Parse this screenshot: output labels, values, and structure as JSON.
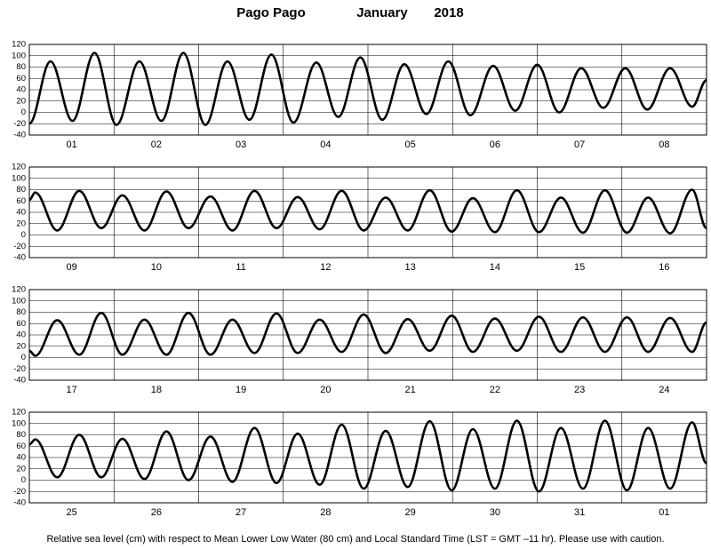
{
  "title": "Pago Pago",
  "month": "January",
  "year": "2018",
  "footnote": "Relative sea level (cm) with respect to Mean Lower Low Water (80 cm) and Local Standard Time (LST = GMT –11 hr). Please use with caution.",
  "chart_data": [
    {
      "type": "line",
      "xlim": [
        0,
        8
      ],
      "ylim": [
        -40,
        120
      ],
      "yticks": [
        -40,
        -20,
        0,
        20,
        40,
        60,
        80,
        100,
        120
      ],
      "grid": true,
      "xgrid": [
        1,
        2,
        3,
        4,
        5,
        6,
        7
      ],
      "xticks": [
        {
          "value": 0.5,
          "label": "01"
        },
        {
          "value": 1.5,
          "label": "02"
        },
        {
          "value": 2.5,
          "label": "03"
        },
        {
          "value": 3.5,
          "label": "04"
        },
        {
          "value": 4.5,
          "label": "05"
        },
        {
          "value": 5.5,
          "label": "06"
        },
        {
          "value": 6.5,
          "label": "07"
        },
        {
          "value": 7.5,
          "label": "08"
        }
      ],
      "x": [
        0,
        0.25,
        0.51,
        0.77,
        1.03,
        1.3,
        1.56,
        1.82,
        2.08,
        2.34,
        2.6,
        2.86,
        3.12,
        3.39,
        3.65,
        3.91,
        4.17,
        4.43,
        4.69,
        4.95,
        5.21,
        5.48,
        5.74,
        6.0,
        6.26,
        6.52,
        6.78,
        7.04,
        7.3,
        7.57,
        7.83,
        8
      ],
      "series": [
        {
          "color": "#000000",
          "values": [
            -20,
            90,
            -15,
            105,
            -22,
            90,
            -15,
            105,
            -22,
            90,
            -13,
            102,
            -18,
            88,
            -8,
            97,
            -13,
            85,
            -3,
            90,
            -5,
            82,
            3,
            84,
            0,
            78,
            8,
            78,
            5,
            78,
            10,
            57
          ]
        }
      ]
    },
    {
      "type": "line",
      "xlim": [
        0,
        8
      ],
      "ylim": [
        -40,
        120
      ],
      "yticks": [
        -40,
        -20,
        0,
        20,
        40,
        60,
        80,
        100,
        120
      ],
      "grid": true,
      "xgrid": [
        1,
        2,
        3,
        4,
        5,
        6,
        7
      ],
      "xticks": [
        {
          "value": 0.5,
          "label": "09"
        },
        {
          "value": 1.5,
          "label": "10"
        },
        {
          "value": 2.5,
          "label": "11"
        },
        {
          "value": 3.5,
          "label": "12"
        },
        {
          "value": 4.5,
          "label": "13"
        },
        {
          "value": 5.5,
          "label": "14"
        },
        {
          "value": 6.5,
          "label": "15"
        },
        {
          "value": 7.5,
          "label": "16"
        }
      ],
      "x": [
        0,
        0.07,
        0.33,
        0.59,
        0.85,
        1.1,
        1.36,
        1.62,
        1.88,
        2.14,
        2.4,
        2.66,
        2.92,
        3.17,
        3.43,
        3.69,
        3.95,
        4.21,
        4.47,
        4.73,
        4.99,
        5.24,
        5.5,
        5.76,
        6.02,
        6.28,
        6.54,
        6.8,
        7.06,
        7.31,
        7.57,
        7.83,
        8
      ],
      "series": [
        {
          "color": "#000000",
          "values": [
            62,
            75,
            8,
            78,
            12,
            70,
            8,
            77,
            12,
            68,
            8,
            78,
            12,
            67,
            10,
            78,
            8,
            66,
            8,
            79,
            6,
            65,
            5,
            79,
            5,
            66,
            4,
            79,
            4,
            66,
            3,
            80,
            12
          ]
        }
      ]
    },
    {
      "type": "line",
      "xlim": [
        0,
        8
      ],
      "ylim": [
        -40,
        120
      ],
      "yticks": [
        -40,
        -20,
        0,
        20,
        40,
        60,
        80,
        100,
        120
      ],
      "grid": true,
      "xgrid": [
        1,
        2,
        3,
        4,
        5,
        6,
        7
      ],
      "xticks": [
        {
          "value": 0.5,
          "label": "17"
        },
        {
          "value": 1.5,
          "label": "18"
        },
        {
          "value": 2.5,
          "label": "19"
        },
        {
          "value": 3.5,
          "label": "20"
        },
        {
          "value": 4.5,
          "label": "21"
        },
        {
          "value": 5.5,
          "label": "22"
        },
        {
          "value": 6.5,
          "label": "23"
        },
        {
          "value": 7.5,
          "label": "24"
        }
      ],
      "x": [
        0,
        0.07,
        0.33,
        0.59,
        0.85,
        1.1,
        1.36,
        1.62,
        1.88,
        2.14,
        2.4,
        2.66,
        2.92,
        3.17,
        3.43,
        3.69,
        3.95,
        4.21,
        4.47,
        4.73,
        4.99,
        5.24,
        5.5,
        5.76,
        6.02,
        6.28,
        6.54,
        6.8,
        7.06,
        7.31,
        7.57,
        7.83,
        8
      ],
      "series": [
        {
          "color": "#000000",
          "values": [
            12,
            3,
            66,
            5,
            79,
            5,
            67,
            5,
            79,
            5,
            67,
            8,
            78,
            8,
            67,
            10,
            76,
            8,
            68,
            12,
            74,
            10,
            69,
            12,
            72,
            10,
            71,
            10,
            71,
            10,
            70,
            10,
            62
          ]
        }
      ]
    },
    {
      "type": "line",
      "xlim": [
        0,
        8
      ],
      "ylim": [
        -40,
        120
      ],
      "yticks": [
        -40,
        -20,
        0,
        20,
        40,
        60,
        80,
        100,
        120
      ],
      "grid": true,
      "xgrid": [
        1,
        2,
        3,
        4,
        5,
        6,
        7
      ],
      "xticks": [
        {
          "value": 0.5,
          "label": "25"
        },
        {
          "value": 1.5,
          "label": "26"
        },
        {
          "value": 2.5,
          "label": "27"
        },
        {
          "value": 3.5,
          "label": "28"
        },
        {
          "value": 4.5,
          "label": "29"
        },
        {
          "value": 5.5,
          "label": "30"
        },
        {
          "value": 6.5,
          "label": "31"
        },
        {
          "value": 7.5,
          "label": "01"
        }
      ],
      "x": [
        0,
        0.07,
        0.33,
        0.59,
        0.85,
        1.1,
        1.36,
        1.62,
        1.88,
        2.14,
        2.4,
        2.66,
        2.92,
        3.17,
        3.43,
        3.69,
        3.95,
        4.21,
        4.47,
        4.73,
        4.99,
        5.24,
        5.5,
        5.76,
        6.02,
        6.28,
        6.54,
        6.8,
        7.06,
        7.31,
        7.57,
        7.83,
        8
      ],
      "series": [
        {
          "color": "#000000",
          "values": [
            63,
            72,
            5,
            80,
            5,
            73,
            2,
            86,
            0,
            77,
            -3,
            92,
            -5,
            82,
            -8,
            98,
            -15,
            87,
            -12,
            104,
            -18,
            90,
            -15,
            105,
            -20,
            92,
            -15,
            105,
            -18,
            92,
            -15,
            102,
            30
          ]
        }
      ]
    }
  ]
}
